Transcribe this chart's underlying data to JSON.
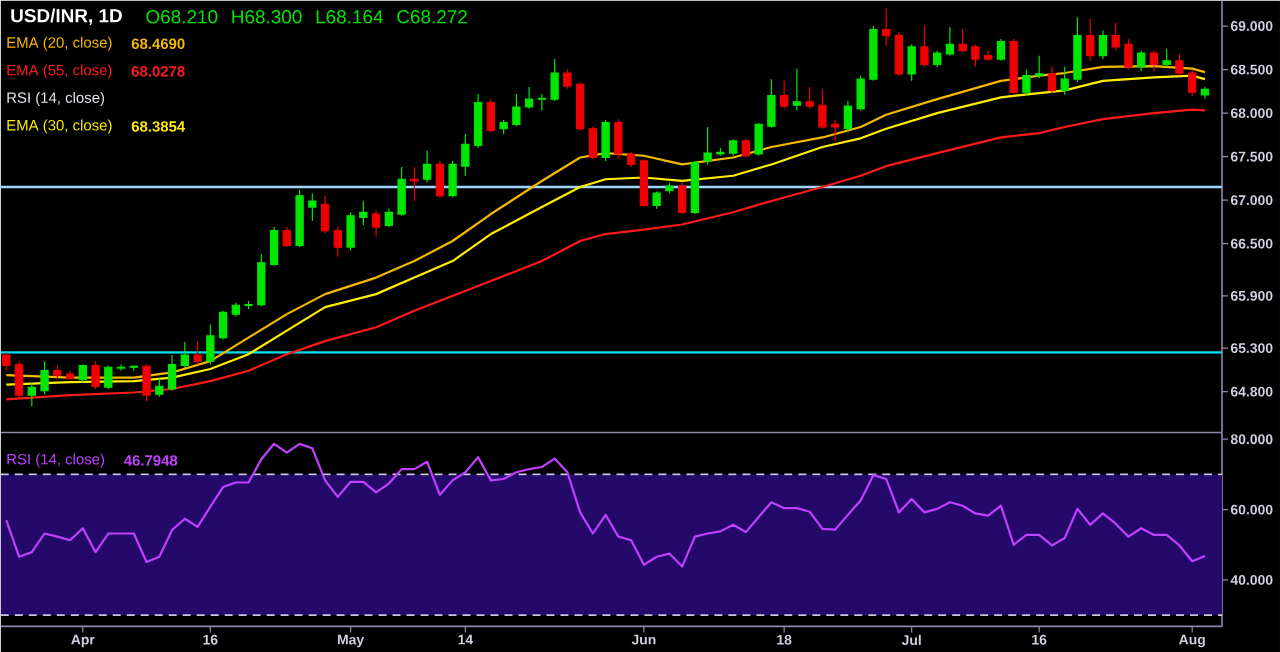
{
  "chart_data": [
    {
      "type": "candlestick",
      "title": "USD/INR, 1D",
      "annotations": [
        "O68.210",
        "H68.300",
        "L68.164",
        "C68.272",
        "68.4690",
        "68.0278",
        "68.3854",
        "RSI (14, close)"
      ],
      "categories": [
        null,
        null,
        null,
        null,
        null,
        null,
        null,
        null,
        null,
        null,
        null,
        null,
        null,
        null,
        null,
        null,
        null,
        null,
        null,
        null,
        null,
        null,
        null,
        null,
        null,
        null,
        null,
        null,
        null,
        null,
        null,
        null,
        null,
        null,
        null,
        null,
        null,
        null,
        null,
        null,
        null,
        null,
        null,
        null,
        null,
        null,
        null,
        null,
        null,
        null,
        null,
        null,
        null,
        null,
        null,
        null,
        null,
        null,
        null,
        null,
        null,
        null,
        null,
        null,
        null,
        null,
        null,
        null,
        null,
        null,
        null,
        null,
        null,
        null,
        null,
        null,
        null,
        null,
        null,
        null,
        null,
        null,
        null,
        null,
        null,
        null,
        null,
        null,
        null,
        null,
        null,
        null,
        null,
        null,
        null
      ],
      "ohlc": [
        [
          65.22,
          65.25,
          65.04,
          65.1
        ],
        [
          65.11,
          65.15,
          64.74,
          64.76
        ],
        [
          64.76,
          64.9,
          64.63,
          64.85
        ],
        [
          64.81,
          65.15,
          64.77,
          65.04
        ],
        [
          65.04,
          65.1,
          64.95,
          64.99
        ],
        [
          65.0,
          65.04,
          64.94,
          64.95
        ],
        [
          64.94,
          65.11,
          64.9,
          65.1
        ],
        [
          65.1,
          65.15,
          64.83,
          64.86
        ],
        [
          64.85,
          65.1,
          64.83,
          65.08
        ],
        [
          65.07,
          65.11,
          65.04,
          65.08
        ],
        [
          65.08,
          65.1,
          65.04,
          65.09
        ],
        [
          65.09,
          65.11,
          64.69,
          64.76
        ],
        [
          64.77,
          64.95,
          64.74,
          64.86
        ],
        [
          64.83,
          65.22,
          64.81,
          65.11
        ],
        [
          65.1,
          65.37,
          65.07,
          65.22
        ],
        [
          65.22,
          65.38,
          65.11,
          65.15
        ],
        [
          65.15,
          65.57,
          65.11,
          65.44
        ],
        [
          65.42,
          65.73,
          65.4,
          65.71
        ],
        [
          65.69,
          65.82,
          65.66,
          65.79
        ],
        [
          65.79,
          65.84,
          65.75,
          65.8
        ],
        [
          65.8,
          66.38,
          65.78,
          66.28
        ],
        [
          66.26,
          66.69,
          66.24,
          66.65
        ],
        [
          66.65,
          66.69,
          66.46,
          66.48
        ],
        [
          66.48,
          67.12,
          66.46,
          67.05
        ],
        [
          66.92,
          67.08,
          66.76,
          66.99
        ],
        [
          66.95,
          67.05,
          66.62,
          66.65
        ],
        [
          66.65,
          66.69,
          66.35,
          66.46
        ],
        [
          66.46,
          66.86,
          66.42,
          66.82
        ],
        [
          66.8,
          66.99,
          66.71,
          66.86
        ],
        [
          66.84,
          66.88,
          66.58,
          66.69
        ],
        [
          66.71,
          66.9,
          66.69,
          66.86
        ],
        [
          66.84,
          67.38,
          66.82,
          67.24
        ],
        [
          67.24,
          67.38,
          66.99,
          67.22
        ],
        [
          67.24,
          67.57,
          67.2,
          67.41
        ],
        [
          67.41,
          67.45,
          67.03,
          67.05
        ],
        [
          67.05,
          67.45,
          67.03,
          67.41
        ],
        [
          67.39,
          67.76,
          67.28,
          67.64
        ],
        [
          67.63,
          68.22,
          67.6,
          68.12
        ],
        [
          68.12,
          68.16,
          67.78,
          67.8
        ],
        [
          67.82,
          67.92,
          67.76,
          67.89
        ],
        [
          67.87,
          68.22,
          67.85,
          68.07
        ],
        [
          68.07,
          68.3,
          68.05,
          68.16
        ],
        [
          68.16,
          68.22,
          68.03,
          68.17
        ],
        [
          68.16,
          68.62,
          68.14,
          68.46
        ],
        [
          68.46,
          68.5,
          68.28,
          68.31
        ],
        [
          68.33,
          68.36,
          67.8,
          67.82
        ],
        [
          67.82,
          67.85,
          67.47,
          67.49
        ],
        [
          67.49,
          67.92,
          67.45,
          67.89
        ],
        [
          67.89,
          67.93,
          67.48,
          67.53
        ],
        [
          67.53,
          67.55,
          67.38,
          67.41
        ],
        [
          67.45,
          67.47,
          66.92,
          66.94
        ],
        [
          66.94,
          67.1,
          66.9,
          67.08
        ],
        [
          67.11,
          67.2,
          67.08,
          67.16
        ],
        [
          67.16,
          67.2,
          66.84,
          66.86
        ],
        [
          66.86,
          67.45,
          66.84,
          67.43
        ],
        [
          67.45,
          67.84,
          67.41,
          67.54
        ],
        [
          67.53,
          67.6,
          67.51,
          67.55
        ],
        [
          67.54,
          67.7,
          67.51,
          67.68
        ],
        [
          67.68,
          67.7,
          67.49,
          67.51
        ],
        [
          67.53,
          67.89,
          67.51,
          67.87
        ],
        [
          67.85,
          68.39,
          67.83,
          68.2
        ],
        [
          68.2,
          68.37,
          68.05,
          68.08
        ],
        [
          68.09,
          68.51,
          68.03,
          68.13
        ],
        [
          68.13,
          68.3,
          68.05,
          68.08
        ],
        [
          68.09,
          68.27,
          67.82,
          67.84
        ],
        [
          67.87,
          67.92,
          67.68,
          67.84
        ],
        [
          67.82,
          68.14,
          67.78,
          68.08
        ],
        [
          68.05,
          68.43,
          68.03,
          68.39
        ],
        [
          68.39,
          69.0,
          68.37,
          68.96
        ],
        [
          68.96,
          69.2,
          68.77,
          68.89
        ],
        [
          68.89,
          68.93,
          68.43,
          68.45
        ],
        [
          68.45,
          68.79,
          68.37,
          68.76
        ],
        [
          68.76,
          69.01,
          68.53,
          68.56
        ],
        [
          68.56,
          68.72,
          68.53,
          68.69
        ],
        [
          68.68,
          68.99,
          68.66,
          68.79
        ],
        [
          68.79,
          68.97,
          68.7,
          68.72
        ],
        [
          68.76,
          68.79,
          68.53,
          68.62
        ],
        [
          68.66,
          68.72,
          68.6,
          68.62
        ],
        [
          68.62,
          68.85,
          68.6,
          68.82
        ],
        [
          68.82,
          68.85,
          68.22,
          68.24
        ],
        [
          68.24,
          68.5,
          68.2,
          68.43
        ],
        [
          68.43,
          68.66,
          68.4,
          68.45
        ],
        [
          68.45,
          68.53,
          68.22,
          68.26
        ],
        [
          68.26,
          68.53,
          68.21,
          68.39
        ],
        [
          68.39,
          69.1,
          68.36,
          68.89
        ],
        [
          68.89,
          69.08,
          68.6,
          68.66
        ],
        [
          68.66,
          68.95,
          68.62,
          68.89
        ],
        [
          68.89,
          69.04,
          68.72,
          68.76
        ],
        [
          68.79,
          68.85,
          68.5,
          68.53
        ],
        [
          68.53,
          68.72,
          68.48,
          68.69
        ],
        [
          68.69,
          68.72,
          68.48,
          68.56
        ],
        [
          68.56,
          68.74,
          68.53,
          68.6
        ],
        [
          68.6,
          68.68,
          68.43,
          68.46
        ],
        [
          68.46,
          68.5,
          68.2,
          68.24
        ],
        [
          68.21,
          68.3,
          68.164,
          68.272
        ]
      ],
      "colors": [
        "#f00000",
        "#f00000",
        "#00e600",
        "#00e600",
        "#f00000",
        "#f00000",
        "#00e600",
        "#f00000",
        "#00e600",
        "#00e600",
        "#00e600",
        "#f00000",
        "#00e600",
        "#00e600",
        "#00e600",
        "#f00000",
        "#00e600",
        "#00e600",
        "#00e600",
        "#00e600",
        "#00e600",
        "#00e600",
        "#f00000",
        "#00e600",
        "#00e600",
        "#f00000",
        "#f00000",
        "#00e600",
        "#00e600",
        "#f00000",
        "#00e600",
        "#00e600",
        "#f00000",
        "#00e600",
        "#f00000",
        "#00e600",
        "#00e600",
        "#00e600",
        "#f00000",
        "#00e600",
        "#00e600",
        "#00e600",
        "#00e600",
        "#00e600",
        "#f00000",
        "#f00000",
        "#f00000",
        "#00e600",
        "#f00000",
        "#f00000",
        "#f00000",
        "#00e600",
        "#00e600",
        "#f00000",
        "#00e600",
        "#00e600",
        "#00e600",
        "#00e600",
        "#f00000",
        "#00e600",
        "#00e600",
        "#f00000",
        "#00e600",
        "#f00000",
        "#f00000",
        "#f00000",
        "#00e600",
        "#00e600",
        "#00e600",
        "#f00000",
        "#f00000",
        "#00e600",
        "#f00000",
        "#00e600",
        "#00e600",
        "#f00000",
        "#f00000",
        "#f00000",
        "#00e600",
        "#f00000",
        "#00e600",
        "#00e600",
        "#f00000",
        "#00e600",
        "#00e600",
        "#f00000",
        "#00e600",
        "#f00000",
        "#f00000",
        "#00e600",
        "#f00000",
        "#00e600",
        "#f00000",
        "#f00000",
        "#00e600"
      ],
      "series": [
        {
          "type": "line",
          "name": "EMA (20, close)",
          "color": "#f5b800",
          "values": [
            64.99,
            null,
            null,
            null,
            null,
            64.96,
            null,
            null,
            null,
            null,
            64.96,
            null,
            null,
            65.02,
            null,
            null,
            65.15,
            null,
            null,
            65.42,
            null,
            null,
            65.69,
            null,
            null,
            65.92,
            null,
            null,
            null,
            66.11,
            null,
            null,
            66.3,
            null,
            null,
            66.53,
            null,
            null,
            66.84,
            null,
            null,
            null,
            67.22,
            null,
            null,
            67.49,
            null,
            67.54,
            null,
            null,
            67.51,
            null,
            null,
            67.41,
            null,
            null,
            null,
            67.49,
            null,
            null,
            67.61,
            null,
            null,
            null,
            67.72,
            null,
            null,
            67.84,
            null,
            67.98,
            null,
            null,
            null,
            68.16,
            null,
            null,
            null,
            null,
            68.37,
            null,
            null,
            68.43,
            null,
            68.46,
            null,
            null,
            68.53,
            null,
            null,
            null,
            68.54,
            null,
            null,
            68.51,
            68.47
          ]
        },
        {
          "type": "line",
          "name": "EMA (55, close)",
          "color": "#ff1a1a",
          "values": [
            64.71,
            null,
            null,
            null,
            null,
            64.76,
            null,
            null,
            null,
            null,
            64.79,
            null,
            null,
            64.83,
            null,
            null,
            64.92,
            null,
            null,
            65.04,
            null,
            null,
            65.23,
            null,
            null,
            65.38,
            null,
            null,
            null,
            65.54,
            null,
            null,
            65.73,
            null,
            null,
            65.9,
            null,
            null,
            66.07,
            null,
            null,
            null,
            66.3,
            null,
            null,
            66.53,
            null,
            66.61,
            null,
            null,
            66.66,
            null,
            null,
            66.72,
            null,
            null,
            null,
            66.86,
            null,
            null,
            66.99,
            null,
            null,
            null,
            67.15,
            null,
            null,
            67.28,
            null,
            67.39,
            null,
            null,
            null,
            67.54,
            null,
            null,
            null,
            null,
            67.72,
            null,
            null,
            67.77,
            null,
            67.84,
            null,
            null,
            67.93,
            null,
            null,
            null,
            68.0,
            null,
            null,
            68.04,
            68.03
          ]
        },
        {
          "type": "line",
          "name": "EMA (30, close)",
          "color": "#ffee00",
          "values": [
            64.88,
            null,
            null,
            null,
            null,
            64.91,
            null,
            null,
            null,
            null,
            64.92,
            null,
            null,
            64.96,
            null,
            null,
            65.06,
            null,
            null,
            65.23,
            null,
            null,
            65.5,
            null,
            null,
            65.77,
            null,
            null,
            null,
            65.92,
            null,
            null,
            66.11,
            null,
            null,
            66.3,
            null,
            null,
            66.61,
            null,
            null,
            null,
            66.92,
            null,
            null,
            67.15,
            null,
            67.24,
            null,
            null,
            67.26,
            null,
            null,
            67.22,
            null,
            null,
            null,
            67.28,
            null,
            null,
            67.41,
            null,
            null,
            null,
            67.61,
            null,
            null,
            67.71,
            null,
            67.82,
            null,
            null,
            null,
            68.0,
            null,
            null,
            null,
            null,
            68.18,
            null,
            null,
            68.23,
            null,
            68.26,
            null,
            null,
            68.37,
            null,
            null,
            null,
            68.41,
            null,
            null,
            68.43,
            68.39
          ]
        }
      ],
      "ylim": [
        64.33,
        69.29
      ],
      "yticks": [
        {
          "value": 69,
          "label": "69.000"
        },
        {
          "value": 68.5,
          "label": "68.500"
        },
        {
          "value": 68,
          "label": "68.000"
        },
        {
          "value": 67.5,
          "label": "67.500"
        },
        {
          "value": 67,
          "label": "67.000"
        },
        {
          "value": 66.5,
          "label": "66.500"
        },
        {
          "value": 65.9,
          "label": "65.900"
        },
        {
          "value": 65.3,
          "label": "65.300"
        },
        {
          "value": 64.8,
          "label": "64.800"
        }
      ],
      "tick_labels": "y",
      "ref_lines": [
        {
          "axis": "y",
          "value": 67.15,
          "color": "#9fd6ff"
        },
        {
          "axis": "y",
          "value": 65.25,
          "color": "#00e0f0"
        }
      ],
      "legend": "top left"
    },
    {
      "type": "line",
      "annotations": [
        "46.7948"
      ],
      "categories": [
        null,
        null,
        null,
        null,
        null,
        null,
        "Apr",
        null,
        null,
        null,
        null,
        null,
        null,
        null,
        null,
        null,
        "16",
        null,
        null,
        null,
        null,
        null,
        null,
        null,
        null,
        null,
        null,
        "May",
        null,
        null,
        null,
        null,
        null,
        null,
        null,
        null,
        "14",
        null,
        null,
        null,
        null,
        null,
        null,
        null,
        null,
        null,
        null,
        null,
        null,
        null,
        "Jun",
        null,
        null,
        null,
        null,
        null,
        null,
        null,
        null,
        null,
        null,
        "18",
        null,
        null,
        null,
        null,
        null,
        null,
        null,
        null,
        null,
        "Jul",
        null,
        null,
        null,
        null,
        null,
        null,
        null,
        null,
        null,
        "16",
        null,
        null,
        null,
        null,
        null,
        null,
        null,
        null,
        null,
        null,
        null,
        "Aug",
        null
      ],
      "series": [
        {
          "name": "RSI (14, close)",
          "color": "#c040ff",
          "values": [
            57.0,
            46.6,
            47.9,
            53.2,
            52.3,
            51.3,
            54.7,
            47.9,
            53.2,
            53.2,
            53.2,
            45.1,
            46.6,
            54.2,
            57.4,
            55.1,
            60.8,
            66.4,
            67.7,
            67.7,
            74.3,
            78.7,
            76.2,
            78.7,
            77.4,
            68.3,
            63.6,
            67.9,
            67.9,
            64.9,
            67.4,
            71.5,
            71.5,
            73.6,
            64.2,
            68.3,
            70.6,
            74.9,
            68.3,
            68.7,
            70.6,
            71.5,
            72.1,
            74.5,
            70.6,
            59.2,
            53.2,
            58.5,
            52.3,
            51.3,
            44.3,
            46.6,
            47.5,
            43.8,
            52.3,
            53.2,
            53.8,
            55.7,
            53.6,
            57.9,
            62.1,
            60.4,
            60.4,
            59.4,
            54.5,
            54.3,
            58.5,
            62.6,
            69.8,
            68.7,
            59.2,
            63.0,
            59.2,
            60.2,
            62.1,
            61.1,
            58.9,
            58.3,
            61.1,
            50.0,
            52.8,
            52.8,
            49.8,
            51.9,
            60.2,
            55.7,
            58.9,
            56.0,
            52.3,
            54.7,
            52.8,
            52.8,
            49.8,
            45.3,
            46.8
          ]
        }
      ],
      "ylim": [
        26.8,
        81.9
      ],
      "yticks": [
        {
          "value": 80,
          "label": "80.000"
        },
        {
          "value": 60,
          "label": "60.000"
        },
        {
          "value": 40,
          "label": "40.000"
        }
      ],
      "bands": [
        {
          "axis": "y",
          "from": 30,
          "to": 70,
          "color": "#24086a"
        }
      ],
      "ref_lines": [
        {
          "axis": "y",
          "value": 70,
          "color": "#c8c8d8",
          "line_style": "dashed"
        },
        {
          "axis": "y",
          "value": 30,
          "color": "#c8c8d8",
          "line_style": "dashed"
        }
      ],
      "legend": "top left"
    }
  ]
}
